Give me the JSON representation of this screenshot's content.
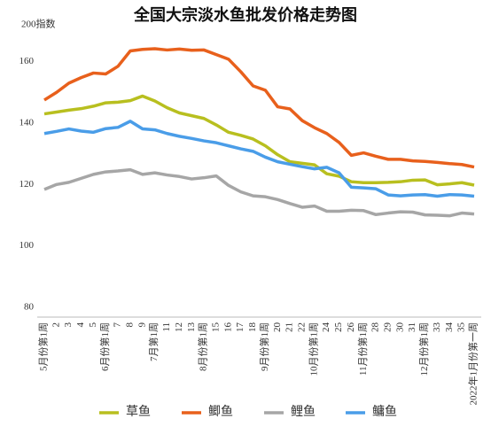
{
  "chart_data": {
    "type": "line",
    "title": "全国大宗淡水鱼批发价格走势图",
    "y_axis_label": "200指数",
    "categories": [
      "5月份第1周",
      "2",
      "3",
      "4",
      "5",
      "6月份第1周",
      "7",
      "8",
      "9",
      "7月第1周",
      "11",
      "12",
      "13",
      "8月份第1周",
      "15",
      "16",
      "17",
      "18",
      "9月份第1周",
      "20",
      "21",
      "22",
      "10月份第1周",
      "24",
      "25",
      "26",
      "11月份第1周",
      "28",
      "29",
      "30",
      "31",
      "12月份第1周",
      "33",
      "34",
      "35",
      "2022年1月份第一周"
    ],
    "series": [
      {
        "name": "草鱼",
        "color": "#b8bf1f",
        "values": [
          143,
          143.6,
          144.2,
          144.7,
          145.5,
          146.6,
          146.8,
          147.3,
          148.8,
          147.2,
          145,
          143.3,
          142.4,
          141.5,
          139.4,
          137,
          136,
          134.8,
          132.6,
          129.7,
          127.4,
          126.9,
          126.4,
          123.5,
          122.7,
          120.9,
          120.6,
          120.6,
          120.7,
          120.9,
          121.4,
          121.5,
          119.9,
          120.2,
          120.6,
          119.8
        ]
      },
      {
        "name": "鲫鱼",
        "color": "#e8601c",
        "values": [
          147.5,
          150,
          153,
          154.8,
          156.3,
          156,
          158.5,
          163.5,
          164,
          164.2,
          163.8,
          164.1,
          163.7,
          163.8,
          162.3,
          160.8,
          156.7,
          152.1,
          150.7,
          145.3,
          144.6,
          140.8,
          138.5,
          136.6,
          133.7,
          129.5,
          130.3,
          129.2,
          128.2,
          128.2,
          127.7,
          127.5,
          127.2,
          126.8,
          126.5,
          125.7
        ]
      },
      {
        "name": "鲤鱼",
        "color": "#a6a6a6",
        "values": [
          118.4,
          120,
          120.7,
          122,
          123.3,
          124.1,
          124.4,
          124.8,
          123.3,
          123.8,
          123.1,
          122.6,
          121.8,
          122.2,
          122.8,
          119.7,
          117.6,
          116.3,
          116,
          115.1,
          113.8,
          112.6,
          113,
          111.3,
          111.3,
          111.6,
          111.5,
          110.2,
          110.7,
          111.1,
          111,
          110.1,
          110,
          109.8,
          110.7,
          110.4
        ]
      },
      {
        "name": "鳙鱼",
        "color": "#4a9de8",
        "values": [
          136.6,
          137.3,
          138.1,
          137.4,
          137,
          138.2,
          138.6,
          140.6,
          138.1,
          137.8,
          136.6,
          135.7,
          135,
          134.2,
          133.6,
          132.6,
          131.6,
          130.8,
          128.9,
          127.4,
          126.6,
          125.8,
          125.1,
          125.6,
          123.8,
          119.1,
          118.9,
          118.6,
          116.6,
          116.3,
          116.6,
          116.7,
          116.2,
          116.7,
          116.6,
          116.2
        ]
      }
    ],
    "ylim": [
      80,
      172
    ],
    "yticks": [
      80,
      100,
      120,
      140,
      160
    ],
    "grid": false,
    "legend": "bottom"
  }
}
